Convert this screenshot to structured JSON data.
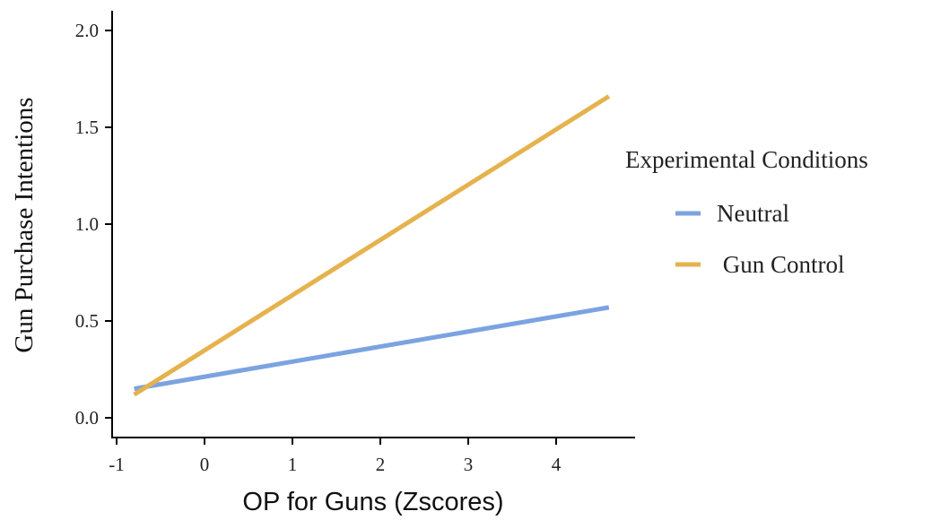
{
  "chart_data": {
    "type": "line",
    "title": "",
    "xlabel": "OP for Guns (Zscores)",
    "ylabel": "Gun Purchase Intentions",
    "xlim": [
      -1.05,
      4.85
    ],
    "ylim": [
      -0.05,
      2.1
    ],
    "xticks": [
      -1,
      0,
      1,
      2,
      3,
      4
    ],
    "xtick_labels": [
      "-1",
      "0",
      "1",
      "2",
      "3",
      "4"
    ],
    "yticks": [
      0.0,
      0.5,
      1.0,
      1.5,
      2.0
    ],
    "ytick_labels": [
      "0.0",
      "0.5",
      "1.0",
      "1.5",
      "2.0"
    ],
    "legend": {
      "title": "Experimental Conditions",
      "position": "right"
    },
    "series": [
      {
        "name": "Neutral",
        "color": "#7BA3E0",
        "x": [
          -0.8,
          4.6
        ],
        "y": [
          0.15,
          0.57
        ]
      },
      {
        "name": " Gun Control",
        "color": "#E5B24E",
        "x": [
          -0.8,
          4.6
        ],
        "y": [
          0.12,
          1.66
        ]
      }
    ],
    "grid": false
  }
}
